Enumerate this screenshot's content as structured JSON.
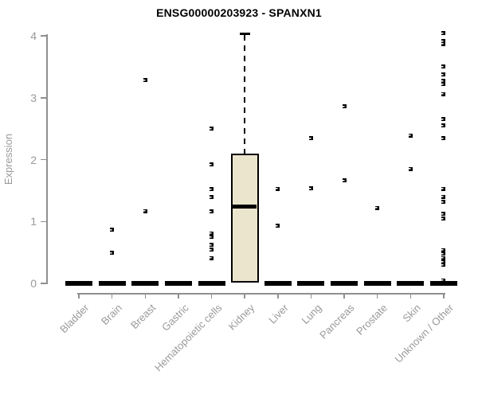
{
  "chart_data": {
    "type": "boxplot",
    "title": "ENSG00000203923 - SPANXN1",
    "ylabel": "Expression",
    "xlabel": "",
    "ylim": [
      0,
      4
    ],
    "yticks": [
      0,
      1,
      2,
      3,
      4
    ],
    "grid": false,
    "legend": "none",
    "categories": [
      "Bladder",
      "Brain",
      "Breast",
      "Gastric",
      "Hematopoietic cells",
      "Kidney",
      "Liver",
      "Lung",
      "Pancreas",
      "Prostate",
      "Skin",
      "Unknown / Other"
    ],
    "series": [
      {
        "category": "Bladder",
        "box": {
          "low": 0,
          "q1": 0,
          "median": 0,
          "q3": 0,
          "high": 0
        },
        "points": []
      },
      {
        "category": "Brain",
        "box": {
          "low": 0,
          "q1": 0,
          "median": 0,
          "q3": 0,
          "high": 0
        },
        "points": [
          0.87,
          0.49
        ]
      },
      {
        "category": "Breast",
        "box": {
          "low": 0,
          "q1": 0,
          "median": 0,
          "q3": 0,
          "high": 0
        },
        "points": [
          3.28,
          1.17
        ]
      },
      {
        "category": "Gastric",
        "box": {
          "low": 0,
          "q1": 0,
          "median": 0,
          "q3": 0,
          "high": 0
        },
        "points": []
      },
      {
        "category": "Hematopoietic cells",
        "box": {
          "low": 0,
          "q1": 0,
          "median": 0,
          "q3": 0,
          "high": 0
        },
        "points": [
          2.5,
          1.92,
          1.52,
          1.39,
          1.16,
          0.81,
          0.75,
          0.62,
          0.55,
          0.41
        ]
      },
      {
        "category": "Kidney",
        "box": {
          "low": 0.01,
          "q1": 0.01,
          "median": 1.24,
          "q3": 2.1,
          "high": 4.03
        },
        "points": []
      },
      {
        "category": "Liver",
        "box": {
          "low": 0,
          "q1": 0,
          "median": 0,
          "q3": 0,
          "high": 0
        },
        "points": [
          1.53,
          0.93
        ]
      },
      {
        "category": "Lung",
        "box": {
          "low": 0,
          "q1": 0,
          "median": 0,
          "q3": 0,
          "high": 0
        },
        "points": [
          2.35,
          1.54
        ]
      },
      {
        "category": "Pancreas",
        "box": {
          "low": 0,
          "q1": 0,
          "median": 0,
          "q3": 0,
          "high": 0
        },
        "points": [
          2.86,
          1.66
        ]
      },
      {
        "category": "Prostate",
        "box": {
          "low": 0,
          "q1": 0,
          "median": 0,
          "q3": 0,
          "high": 0
        },
        "points": [
          1.22
        ]
      },
      {
        "category": "Skin",
        "box": {
          "low": 0,
          "q1": 0,
          "median": 0,
          "q3": 0,
          "high": 0
        },
        "points": [
          2.39,
          1.85
        ]
      },
      {
        "category": "Unknown / Other",
        "box": {
          "low": 0,
          "q1": 0,
          "median": 0,
          "q3": 0,
          "high": 0
        },
        "points": [
          4.04,
          3.92,
          3.87,
          3.5,
          3.38,
          3.27,
          3.22,
          3.06,
          2.65,
          2.55,
          2.35,
          1.53,
          1.4,
          1.32,
          1.12,
          1.05,
          0.54,
          0.48,
          0.41,
          0.35,
          0.3,
          0.05
        ]
      }
    ],
    "colors": {
      "box_fill": "#ebe5cd",
      "box_border": "#000000",
      "point": "#000000",
      "axis": "#8f8f8f",
      "tick_label": "#9a9a9a",
      "title": "#000000"
    }
  }
}
